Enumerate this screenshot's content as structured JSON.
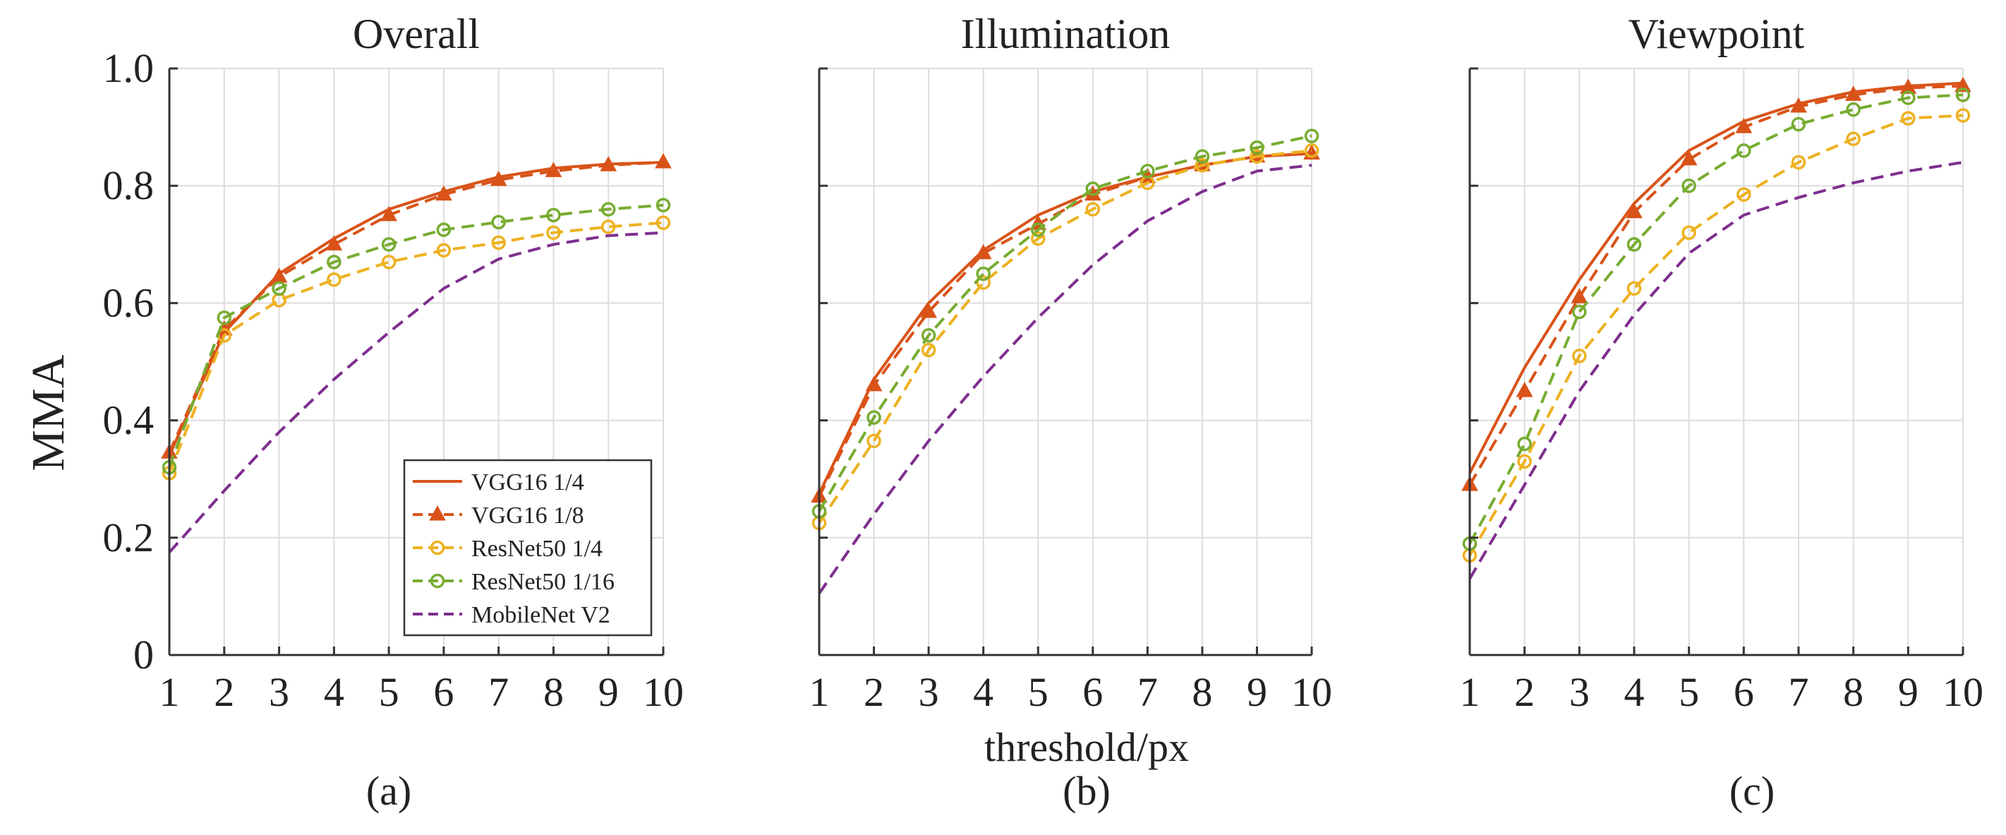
{
  "figure": {
    "xlabel": "threshold/px",
    "ylabel": "MMA",
    "captions": [
      "(a)",
      "(b)",
      "(c)"
    ]
  },
  "legend": {
    "entries": [
      "VGG16 1/4",
      "VGG16 1/8",
      "ResNet50 1/4",
      "ResNet50 1/16",
      "MobileNet V2"
    ]
  },
  "styles": [
    {
      "name": "VGG16 1/4",
      "color": "#d95319",
      "dash": "solid",
      "marker": "none"
    },
    {
      "name": "VGG16 1/8",
      "color": "#d95319",
      "dash": "dashed",
      "marker": "triangle"
    },
    {
      "name": "ResNet50 1/4",
      "color": "#edb120",
      "dash": "dashed",
      "marker": "circle"
    },
    {
      "name": "ResNet50 1/16",
      "color": "#77ac30",
      "dash": "dashed",
      "marker": "circle"
    },
    {
      "name": "MobileNet V2",
      "color": "#7e2f8e",
      "dash": "dashed",
      "marker": "none"
    }
  ],
  "chart_data": [
    {
      "type": "line",
      "title": "Overall",
      "x": [
        1,
        2,
        3,
        4,
        5,
        6,
        7,
        8,
        9,
        10
      ],
      "xlim": [
        1,
        10
      ],
      "ylim": [
        0,
        1
      ],
      "yticks": [
        "0",
        "0.2",
        "0.4",
        "0.6",
        "0.8",
        "1.0"
      ],
      "xticks": [
        "1",
        "2",
        "3",
        "4",
        "5",
        "6",
        "7",
        "8",
        "9",
        "10"
      ],
      "grid": true,
      "legend_position": "bottom-right",
      "series": [
        {
          "name": "VGG16 1/4",
          "values": [
            0.34,
            0.55,
            0.65,
            0.71,
            0.76,
            0.79,
            0.815,
            0.83,
            0.837,
            0.84
          ]
        },
        {
          "name": "VGG16 1/8",
          "values": [
            0.345,
            0.555,
            0.645,
            0.7,
            0.75,
            0.785,
            0.81,
            0.825,
            0.835,
            0.84
          ]
        },
        {
          "name": "ResNet50 1/4",
          "values": [
            0.31,
            0.545,
            0.605,
            0.64,
            0.67,
            0.69,
            0.703,
            0.72,
            0.73,
            0.737
          ]
        },
        {
          "name": "ResNet50 1/16",
          "values": [
            0.32,
            0.575,
            0.625,
            0.67,
            0.7,
            0.725,
            0.738,
            0.75,
            0.76,
            0.767
          ]
        },
        {
          "name": "MobileNet V2",
          "values": [
            0.175,
            0.28,
            0.38,
            0.47,
            0.55,
            0.625,
            0.675,
            0.7,
            0.715,
            0.72
          ]
        }
      ]
    },
    {
      "type": "line",
      "title": "Illumination",
      "x": [
        1,
        2,
        3,
        4,
        5,
        6,
        7,
        8,
        9,
        10
      ],
      "xlim": [
        1,
        10
      ],
      "ylim": [
        0,
        1
      ],
      "yticks": [],
      "xticks": [
        "1",
        "2",
        "3",
        "4",
        "5",
        "6",
        "7",
        "8",
        "9",
        "10"
      ],
      "grid": true,
      "series": [
        {
          "name": "VGG16 1/4",
          "values": [
            0.275,
            0.47,
            0.6,
            0.69,
            0.75,
            0.79,
            0.815,
            0.835,
            0.85,
            0.855
          ]
        },
        {
          "name": "VGG16 1/8",
          "values": [
            0.27,
            0.46,
            0.585,
            0.685,
            0.735,
            0.785,
            0.815,
            0.835,
            0.85,
            0.855
          ]
        },
        {
          "name": "ResNet50 1/4",
          "values": [
            0.225,
            0.365,
            0.52,
            0.635,
            0.71,
            0.76,
            0.805,
            0.835,
            0.85,
            0.86
          ]
        },
        {
          "name": "ResNet50 1/16",
          "values": [
            0.245,
            0.405,
            0.545,
            0.65,
            0.725,
            0.795,
            0.825,
            0.85,
            0.865,
            0.885
          ]
        },
        {
          "name": "MobileNet V2",
          "values": [
            0.105,
            0.24,
            0.365,
            0.475,
            0.575,
            0.665,
            0.74,
            0.79,
            0.825,
            0.835
          ]
        }
      ]
    },
    {
      "type": "line",
      "title": "Viewpoint",
      "x": [
        1,
        2,
        3,
        4,
        5,
        6,
        7,
        8,
        9,
        10
      ],
      "xlim": [
        1,
        10
      ],
      "ylim": [
        0,
        1
      ],
      "yticks": [],
      "xticks": [
        "1",
        "2",
        "3",
        "4",
        "5",
        "6",
        "7",
        "8",
        "9",
        "10"
      ],
      "grid": true,
      "series": [
        {
          "name": "VGG16 1/4",
          "values": [
            0.31,
            0.49,
            0.64,
            0.77,
            0.86,
            0.91,
            0.94,
            0.96,
            0.97,
            0.975
          ]
        },
        {
          "name": "VGG16 1/8",
          "values": [
            0.29,
            0.45,
            0.61,
            0.755,
            0.845,
            0.9,
            0.935,
            0.955,
            0.967,
            0.97
          ]
        },
        {
          "name": "ResNet50 1/4",
          "values": [
            0.17,
            0.33,
            0.51,
            0.625,
            0.72,
            0.785,
            0.84,
            0.88,
            0.915,
            0.92
          ]
        },
        {
          "name": "ResNet50 1/16",
          "values": [
            0.19,
            0.36,
            0.585,
            0.7,
            0.8,
            0.86,
            0.905,
            0.93,
            0.95,
            0.955
          ]
        },
        {
          "name": "MobileNet V2",
          "values": [
            0.13,
            0.29,
            0.45,
            0.58,
            0.685,
            0.75,
            0.78,
            0.805,
            0.825,
            0.84
          ]
        }
      ]
    }
  ]
}
